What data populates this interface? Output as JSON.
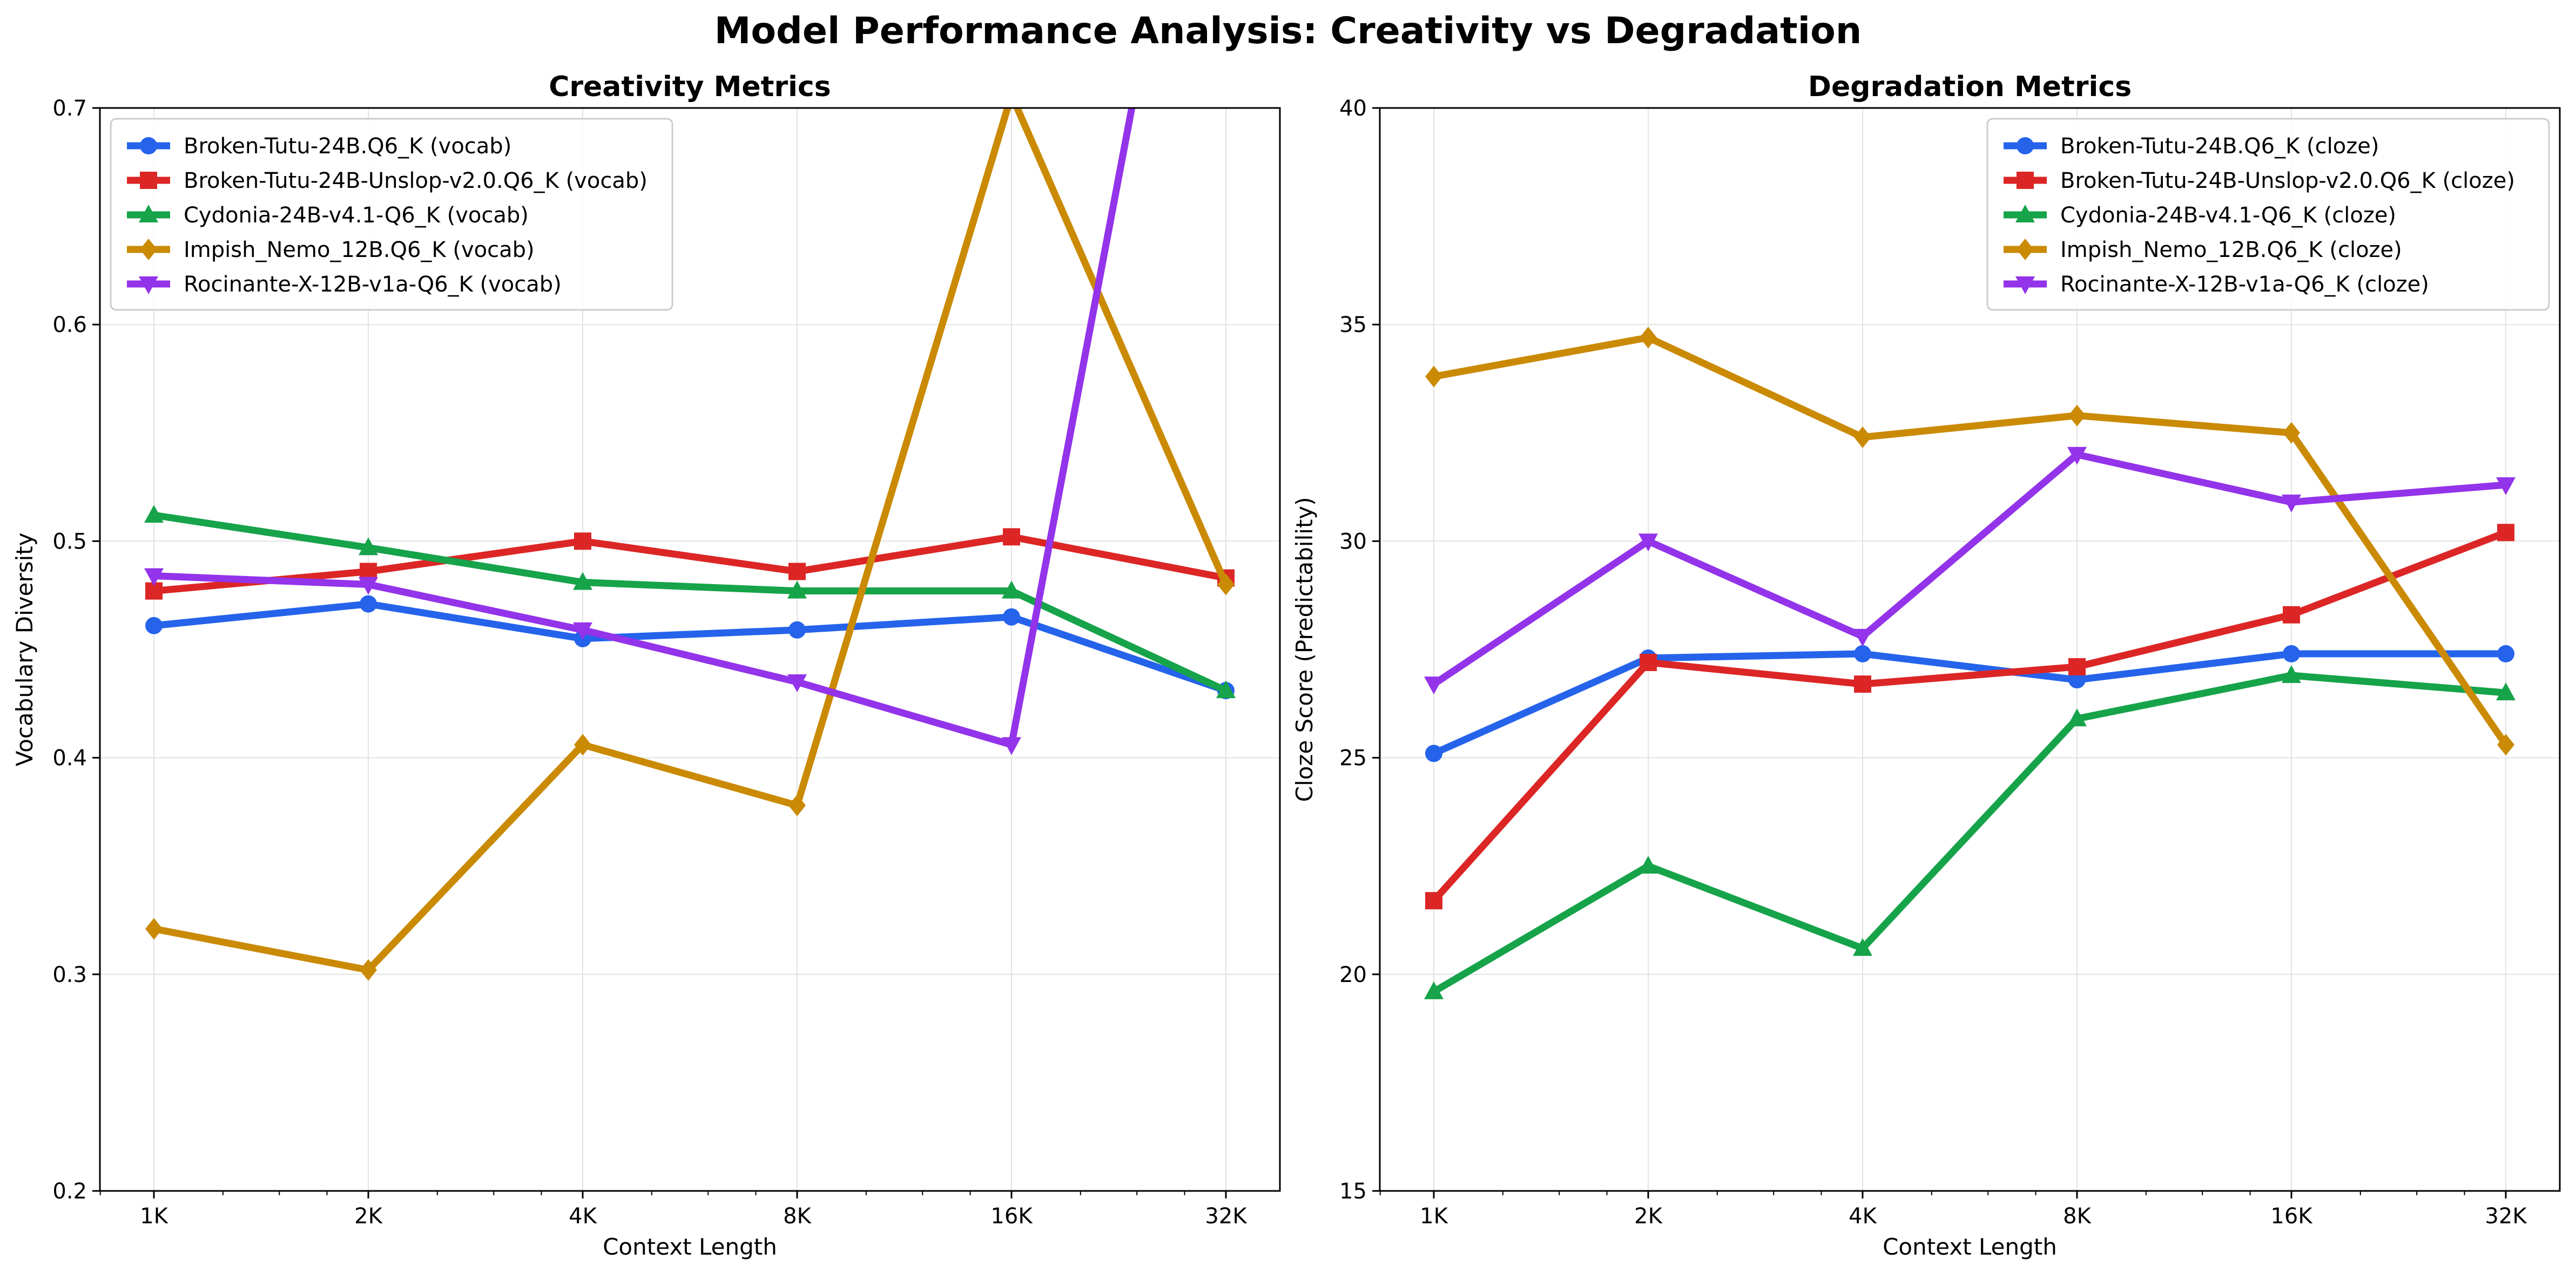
{
  "figure": {
    "title": "Model Performance Analysis: Creativity vs Degradation"
  },
  "chart_data": [
    {
      "type": "line",
      "title": "Creativity Metrics",
      "xlabel": "Context Length",
      "ylabel": "Vocabulary Diversity",
      "x_scale": "log2",
      "categories": [
        "1K",
        "2K",
        "4K",
        "8K",
        "16K",
        "32K"
      ],
      "ylim": [
        0.2,
        0.7
      ],
      "yticks": [
        "0.2",
        "0.3",
        "0.4",
        "0.5",
        "0.6",
        "0.7"
      ],
      "grid": true,
      "legend_position": "upper-left",
      "series": [
        {
          "name": "Broken-Tutu-24B.Q6_K (vocab)",
          "color": "#2563eb",
          "marker": "circle",
          "values": [
            0.461,
            0.471,
            0.455,
            0.459,
            0.465,
            0.431
          ]
        },
        {
          "name": "Broken-Tutu-24B-Unslop-v2.0.Q6_K (vocab)",
          "color": "#dc2626",
          "marker": "square",
          "values": [
            0.477,
            0.486,
            0.5,
            0.486,
            0.502,
            0.483
          ]
        },
        {
          "name": "Cydonia-24B-v4.1-Q6_K (vocab)",
          "color": "#16a34a",
          "marker": "triangle-up",
          "values": [
            0.512,
            0.497,
            0.481,
            0.477,
            0.477,
            0.431
          ]
        },
        {
          "name": "Impish_Nemo_12B.Q6_K (vocab)",
          "color": "#ca8a04",
          "marker": "diamond",
          "values": [
            0.321,
            0.302,
            0.406,
            0.378,
            0.706,
            0.48
          ]
        },
        {
          "name": "Rocinante-X-12B-v1a-Q6_K (vocab)",
          "color": "#9333ea",
          "marker": "triangle-down",
          "values": [
            0.484,
            0.48,
            0.459,
            0.435,
            0.406,
            0.93
          ]
        }
      ]
    },
    {
      "type": "line",
      "title": "Degradation Metrics",
      "xlabel": "Context Length",
      "ylabel": "Cloze Score (Predictability)",
      "x_scale": "log2",
      "categories": [
        "1K",
        "2K",
        "4K",
        "8K",
        "16K",
        "32K"
      ],
      "ylim": [
        15,
        40
      ],
      "yticks": [
        "15",
        "20",
        "25",
        "30",
        "35",
        "40"
      ],
      "grid": true,
      "legend_position": "upper-right",
      "series": [
        {
          "name": "Broken-Tutu-24B.Q6_K (cloze)",
          "color": "#2563eb",
          "marker": "circle",
          "values": [
            25.1,
            27.3,
            27.4,
            26.8,
            27.4,
            27.4
          ]
        },
        {
          "name": "Broken-Tutu-24B-Unslop-v2.0.Q6_K (cloze)",
          "color": "#dc2626",
          "marker": "square",
          "values": [
            21.7,
            27.2,
            26.7,
            27.1,
            28.3,
            30.2
          ]
        },
        {
          "name": "Cydonia-24B-v4.1-Q6_K (cloze)",
          "color": "#16a34a",
          "marker": "triangle-up",
          "values": [
            19.6,
            22.5,
            20.6,
            25.9,
            26.9,
            26.5
          ]
        },
        {
          "name": "Impish_Nemo_12B.Q6_K (cloze)",
          "color": "#ca8a04",
          "marker": "diamond",
          "values": [
            33.8,
            34.7,
            32.4,
            32.9,
            32.5,
            25.3
          ]
        },
        {
          "name": "Rocinante-X-12B-v1a-Q6_K (cloze)",
          "color": "#9333ea",
          "marker": "triangle-down",
          "values": [
            26.7,
            30.0,
            27.8,
            32.0,
            30.9,
            31.3
          ]
        }
      ]
    }
  ]
}
